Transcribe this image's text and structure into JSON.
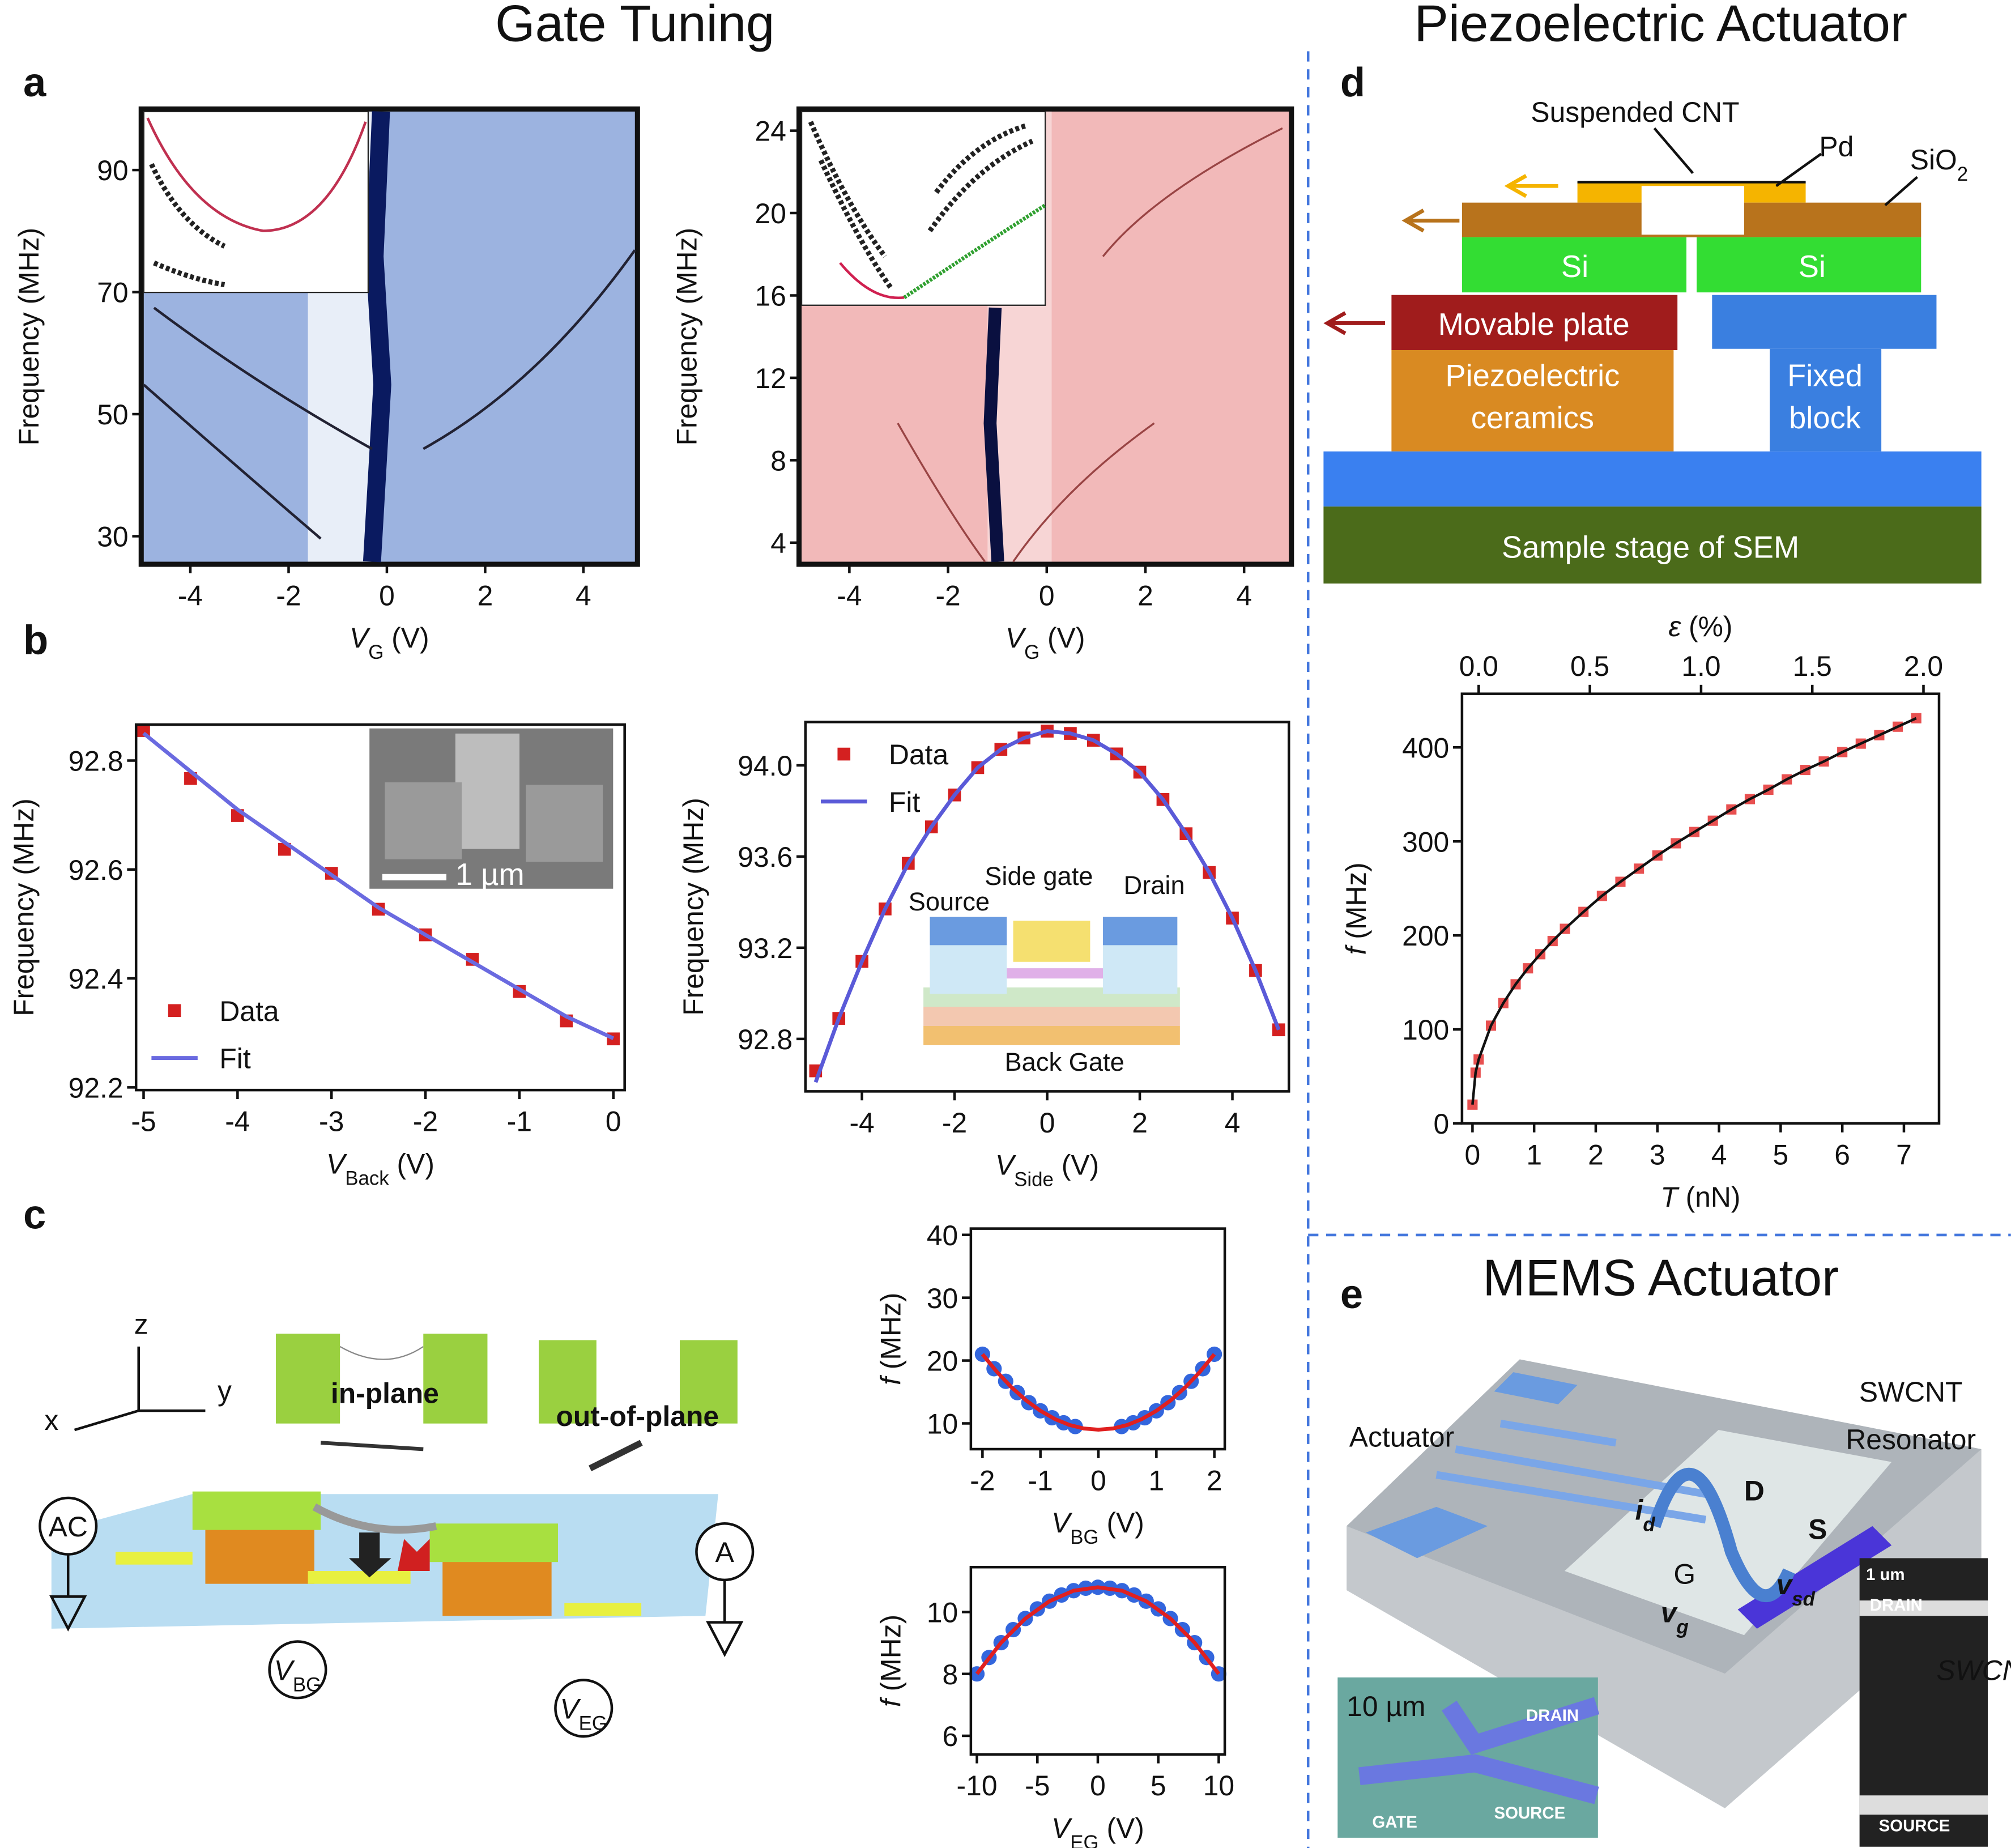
{
  "headings": {
    "gate_tuning": "Gate Tuning",
    "piezo": "Piezoelectric Actuator",
    "mems": "MEMS Actuator"
  },
  "panel_letters": [
    "a",
    "b",
    "c",
    "d",
    "e"
  ],
  "chart_data": [
    {
      "type": "heatmap",
      "color": "#9cb3e0",
      "xlim": [
        -5,
        5.1
      ],
      "xticks": [
        -4,
        -2,
        0,
        2,
        4
      ],
      "ylim": [
        25.4,
        100
      ],
      "yticks": [
        30,
        50,
        70,
        90
      ],
      "xlabel": [
        "V",
        "G",
        " (V)"
      ],
      "xlabel_style": [
        "italic",
        "sub",
        "normal"
      ],
      "ylabel": [
        "Frequency (MHz)"
      ],
      "ylabel_style": [
        "normal"
      ]
    },
    {
      "type": "heatmap",
      "color": "#f2b9b9",
      "xlim": [
        -5.02,
        4.96
      ],
      "xticks": [
        -4,
        -2,
        0,
        2,
        4
      ],
      "ylim": [
        2.95,
        25.05
      ],
      "yticks": [
        4,
        8,
        12,
        16,
        20,
        24
      ],
      "xlabel": [
        "V",
        "G",
        " (V)"
      ],
      "xlabel_style": [
        "italic",
        "sub",
        "normal"
      ],
      "ylabel": [
        "Frequency (MHz)"
      ],
      "ylabel_style": [
        "normal"
      ]
    },
    {
      "type": "scatter",
      "xlim": [
        -5.08,
        0.12
      ],
      "xticks": [
        -5,
        -4,
        -3,
        -2,
        -1,
        0
      ],
      "ylim": [
        92.195,
        92.866
      ],
      "yticks": [
        92.2,
        92.4,
        92.6,
        92.8
      ],
      "legend": "lower left",
      "xlabel": [
        "V",
        "Back",
        "  (V)"
      ],
      "xlabel_style": [
        "italic",
        "sub",
        "normal"
      ],
      "ylabel": [
        "Frequency (MHz)"
      ],
      "ylabel_style": [
        "normal"
      ],
      "series": [
        {
          "name": "Data",
          "color": "#d42020",
          "marker": "square",
          "x": [
            -5,
            -4.5,
            -4,
            -3.5,
            -3,
            -2.5,
            -2,
            -1.5,
            -1,
            -0.5,
            0
          ],
          "values": [
            92.855,
            92.767,
            92.699,
            92.637,
            92.593,
            92.527,
            92.48,
            92.435,
            92.376,
            92.322,
            92.289
          ]
        },
        {
          "name": "Fit",
          "color": "#6a6ae0",
          "line": true,
          "x": [
            -5,
            -4.5,
            -4,
            -3.5,
            -3,
            -2.5,
            -2,
            -1.5,
            -1,
            -0.5,
            0
          ],
          "values": [
            92.85,
            92.78,
            92.71,
            92.65,
            92.59,
            92.53,
            92.48,
            92.43,
            92.38,
            92.33,
            92.29
          ]
        }
      ]
    },
    {
      "type": "scatter",
      "xlim": [
        -5.22,
        5.22
      ],
      "xticks": [
        -4,
        -2,
        0,
        2,
        4
      ],
      "ylim": [
        92.57,
        94.19
      ],
      "yticks": [
        92.8,
        93.2,
        93.6,
        {
          "value": 94,
          "label": "94.0"
        }
      ],
      "legend": "upper left",
      "xlabel": [
        "V",
        "Side",
        " (V)"
      ],
      "xlabel_style": [
        "italic",
        "sub",
        "normal"
      ],
      "ylabel": [
        "Frequency (MHz)"
      ],
      "ylabel_style": [
        "normal"
      ],
      "series": [
        {
          "name": "Data",
          "color": "#d42020",
          "marker": "square",
          "x": [
            -5,
            -4.5,
            -4,
            -3.5,
            -3,
            -2.5,
            -2,
            -1.5,
            -1,
            -0.5,
            0,
            0.5,
            1,
            1.5,
            2,
            2.5,
            3,
            3.5,
            4,
            4.5,
            5
          ],
          "values": [
            92.66,
            92.89,
            93.14,
            93.37,
            93.57,
            93.73,
            93.87,
            93.99,
            94.07,
            94.12,
            94.15,
            94.14,
            94.11,
            94.05,
            93.97,
            93.85,
            93.7,
            93.53,
            93.33,
            93.1,
            92.84
          ]
        },
        {
          "name": "Fit",
          "color": "#5a5ad8",
          "line": true,
          "x": [
            -5,
            -4.5,
            -4,
            -3.5,
            -3,
            -2.5,
            -2,
            -1.5,
            -1,
            -0.5,
            0,
            0.5,
            1,
            1.5,
            2,
            2.5,
            3,
            3.5,
            4,
            4.5,
            5
          ],
          "values": [
            92.61,
            92.89,
            93.14,
            93.37,
            93.57,
            93.73,
            93.87,
            93.99,
            94.07,
            94.12,
            94.15,
            94.14,
            94.11,
            94.05,
            93.97,
            93.85,
            93.7,
            93.53,
            93.33,
            93.1,
            92.84
          ]
        }
      ]
    },
    {
      "type": "scatter",
      "xlim": [
        -2.2,
        2.18
      ],
      "xticks": [
        -2,
        -1,
        0,
        1,
        2
      ],
      "ylim": [
        5.9,
        41
      ],
      "yticks": [
        10,
        20,
        30,
        40
      ],
      "xlabel": [
        "V",
        "BG",
        " (V)"
      ],
      "xlabel_style": [
        "italic",
        "sub",
        "normal"
      ],
      "ylabel": [
        "f",
        " (MHz)"
      ],
      "ylabel_style": [
        "italic",
        "normal"
      ],
      "series": [
        {
          "color": "#3366dd",
          "marker": "circle",
          "x": [
            -2,
            -1.8,
            -1.6,
            -1.4,
            -1.2,
            -1,
            -0.8,
            -0.6,
            -0.4,
            0.4,
            0.6,
            0.8,
            1,
            1.2,
            1.4,
            1.6,
            1.8,
            2
          ],
          "values": [
            21,
            18.7,
            16.7,
            14.9,
            13.3,
            12,
            10.9,
            10.1,
            9.5,
            9.5,
            10.1,
            10.9,
            12,
            13.3,
            14.9,
            16.7,
            18.7,
            21
          ]
        },
        {
          "color": "#e02020",
          "line": true,
          "x": [
            -2,
            -1.75,
            -1.5,
            -1.25,
            -1,
            -0.75,
            -0.5,
            -0.25,
            0,
            0.25,
            0.5,
            0.75,
            1,
            1.25,
            1.5,
            1.75,
            2
          ],
          "values": [
            21,
            18.19,
            15.75,
            13.69,
            12,
            10.69,
            9.75,
            9.19,
            9,
            9.19,
            9.75,
            10.69,
            12,
            13.69,
            15.75,
            18.19,
            21
          ]
        }
      ]
    },
    {
      "type": "scatter",
      "xlim": [
        -10.5,
        10.5
      ],
      "xticks": [
        -10,
        -5,
        0,
        5,
        10
      ],
      "ylim": [
        5.4,
        11.45
      ],
      "yticks": [
        6,
        8,
        10
      ],
      "xlabel": [
        "V",
        "EG",
        " (V)"
      ],
      "xlabel_style": [
        "italic",
        "sub",
        "normal"
      ],
      "ylabel": [
        "f",
        " (MHz)"
      ],
      "ylabel_style": [
        "italic",
        "normal"
      ],
      "series": [
        {
          "color": "#3366dd",
          "marker": "circle",
          "x": [
            -10,
            -9,
            -8,
            -7,
            -6,
            -5,
            -4,
            -3,
            -2,
            -1,
            0,
            1,
            2,
            3,
            4,
            5,
            6,
            7,
            8,
            9,
            10
          ],
          "values": [
            8,
            8.53,
            9.01,
            9.43,
            9.79,
            10.1,
            10.35,
            10.55,
            10.69,
            10.77,
            10.8,
            10.77,
            10.69,
            10.55,
            10.35,
            10.1,
            9.79,
            9.43,
            9.01,
            8.53,
            8
          ]
        },
        {
          "color": "#e02020",
          "line": true,
          "x": [
            -10,
            -8,
            -6,
            -4,
            -2,
            0,
            2,
            4,
            6,
            8,
            10
          ],
          "values": [
            8,
            9.01,
            9.79,
            10.35,
            10.69,
            10.8,
            10.69,
            10.35,
            9.79,
            9.01,
            8
          ]
        }
      ]
    },
    {
      "type": "scatter",
      "xlim": [
        -0.17,
        7.57
      ],
      "xticks": [
        0,
        1,
        2,
        3,
        4,
        5,
        6,
        7
      ],
      "ylim": [
        0,
        457
      ],
      "yticks": [
        0,
        100,
        200,
        300,
        400
      ],
      "x2lim": [
        -0.075,
        2.07
      ],
      "x2ticks": [
        {
          "value": 0,
          "label": "0.0"
        },
        0.5,
        {
          "value": 1,
          "label": "1.0"
        },
        1.5,
        {
          "value": 2,
          "label": "2.0"
        }
      ],
      "x2label": [
        "ε",
        " (%)"
      ],
      "x2label_style": [
        "italic",
        "normal"
      ],
      "xlabel": [
        "T",
        " (nN)"
      ],
      "xlabel_style": [
        "italic",
        "normal"
      ],
      "ylabel": [
        "f",
        " (MHz)"
      ],
      "ylabel_style": [
        "italic",
        "normal"
      ],
      "series": [
        {
          "color": "#e85050",
          "marker": "square",
          "x": [
            0,
            0.05,
            0.1,
            0.3,
            0.5,
            0.7,
            0.9,
            1.1,
            1.3,
            1.5,
            1.8,
            2.1,
            2.4,
            2.7,
            3,
            3.3,
            3.6,
            3.9,
            4.2,
            4.5,
            4.8,
            5.1,
            5.4,
            5.7,
            6,
            6.3,
            6.6,
            6.9,
            7.2
          ],
          "values": [
            20,
            54,
            68,
            104,
            128,
            148,
            165,
            180,
            194,
            207,
            225,
            242,
            257,
            271,
            285,
            298,
            310,
            322,
            334,
            345,
            355,
            366,
            376,
            385,
            395,
            404,
            413,
            422,
            431
          ]
        },
        {
          "color": "#111111",
          "line": true,
          "x": [
            0,
            0.05,
            0.1,
            0.3,
            0.5,
            0.7,
            0.9,
            1.1,
            1.3,
            1.5,
            1.8,
            2.1,
            2.4,
            2.7,
            3,
            3.3,
            3.6,
            3.9,
            4.2,
            4.5,
            4.8,
            5.1,
            5.4,
            5.7,
            6,
            6.3,
            6.6,
            6.9,
            7.2
          ],
          "values": [
            20,
            54,
            68,
            104,
            128,
            148,
            165,
            180,
            194,
            207,
            225,
            242,
            257,
            271,
            285,
            298,
            310,
            322,
            334,
            345,
            355,
            366,
            376,
            385,
            395,
            404,
            413,
            422,
            431
          ]
        }
      ]
    }
  ],
  "inset_b_left": {
    "scale": "1 µm"
  },
  "inset_b_right": {
    "source": "Source",
    "side_gate": "Side gate",
    "drain": "Drain",
    "back_gate": "Back Gate"
  },
  "diagram_c": {
    "z": "z",
    "x": "x",
    "y": "y",
    "in_plane": "in-plane",
    "out_of_plane": "out-of-plane",
    "ac": "AC",
    "a": "A",
    "vbg": [
      "V",
      "BG"
    ],
    "veg": [
      "V",
      "EG"
    ]
  },
  "diagram_d": {
    "suspended_cnt": "Suspended CNT",
    "pd": "Pd",
    "sio2": [
      "SiO",
      "2"
    ],
    "si_left": "Si",
    "si_right": "Si",
    "movable_plate": "Movable plate",
    "piezo": [
      "Piezoelectric",
      "ceramics"
    ],
    "fixed": [
      "Fixed",
      "block"
    ],
    "stage": "Sample stage of SEM"
  },
  "diagram_e": {
    "actuator": "Actuator",
    "resonator": [
      "SWCNT",
      "Resonator"
    ],
    "d": "D",
    "s": "S",
    "g": "G",
    "id": [
      "i",
      "d"
    ],
    "vsd": [
      "v",
      "sd"
    ],
    "vg": [
      "v",
      "g"
    ],
    "sem_right": {
      "scale": "1 um",
      "drain": "DRAIN",
      "swcnt": "SWCNT",
      "source": "SOURCE"
    },
    "sem_left": {
      "scale": "10 µm",
      "drain": "DRAIN",
      "gate": "GATE",
      "source": "SOURCE"
    }
  }
}
